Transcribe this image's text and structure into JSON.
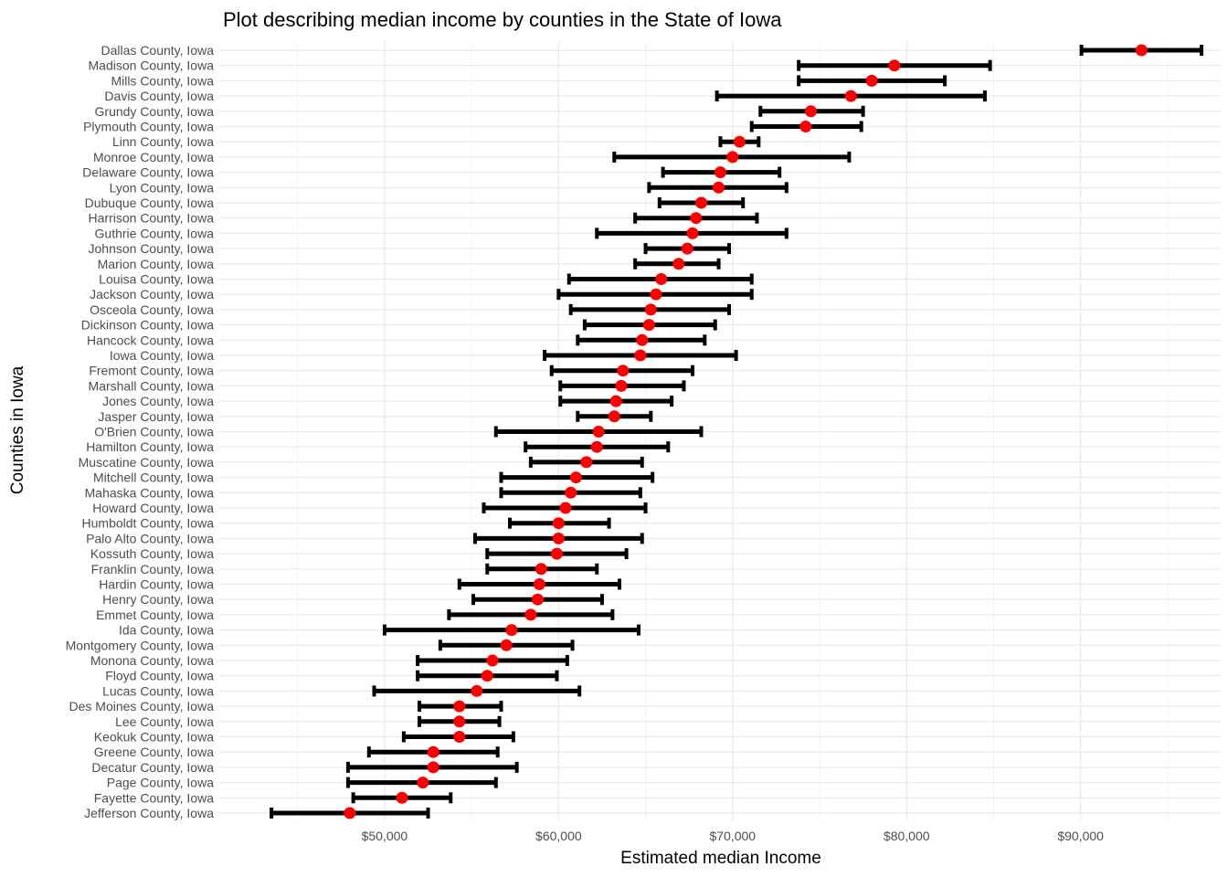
{
  "chart_data": {
    "type": "errorbar",
    "title": "Plot describing median income by counties in the State of Iowa",
    "xlabel": "Estimated median Income",
    "ylabel": "Counties in Iowa",
    "xlim": [
      40500,
      98000
    ],
    "x_ticks": [
      50000,
      60000,
      70000,
      80000,
      90000
    ],
    "x_tick_labels": [
      "$50,000",
      "$60,000",
      "$70,000",
      "$80,000",
      "$90,000"
    ],
    "grid": true,
    "colors": {
      "point": "#ff0000",
      "bar": "#000000"
    },
    "counties": [
      {
        "name": "Dallas County, Iowa",
        "estimate": 93500,
        "low": 90050,
        "high": 96950
      },
      {
        "name": "Madison County, Iowa",
        "estimate": 79300,
        "low": 73800,
        "high": 84800
      },
      {
        "name": "Mills County, Iowa",
        "estimate": 78000,
        "low": 73800,
        "high": 82200
      },
      {
        "name": "Davis County, Iowa",
        "estimate": 76800,
        "low": 69100,
        "high": 84500
      },
      {
        "name": "Grundy County, Iowa",
        "estimate": 74500,
        "low": 71600,
        "high": 77500
      },
      {
        "name": "Plymouth County, Iowa",
        "estimate": 74200,
        "low": 71100,
        "high": 77400
      },
      {
        "name": "Linn County, Iowa",
        "estimate": 70400,
        "low": 69300,
        "high": 71500
      },
      {
        "name": "Monroe County, Iowa",
        "estimate": 70000,
        "low": 63200,
        "high": 76700
      },
      {
        "name": "Delaware County, Iowa",
        "estimate": 69300,
        "low": 66000,
        "high": 72700
      },
      {
        "name": "Lyon County, Iowa",
        "estimate": 69200,
        "low": 65200,
        "high": 73100
      },
      {
        "name": "Dubuque County, Iowa",
        "estimate": 68200,
        "low": 65800,
        "high": 70600
      },
      {
        "name": "Harrison County, Iowa",
        "estimate": 67900,
        "low": 64400,
        "high": 71400
      },
      {
        "name": "Guthrie County, Iowa",
        "estimate": 67700,
        "low": 62200,
        "high": 73100
      },
      {
        "name": "Johnson County, Iowa",
        "estimate": 67400,
        "low": 65000,
        "high": 69800
      },
      {
        "name": "Marion County, Iowa",
        "estimate": 66900,
        "low": 64400,
        "high": 69200
      },
      {
        "name": "Louisa County, Iowa",
        "estimate": 65900,
        "low": 60600,
        "high": 71100
      },
      {
        "name": "Jackson County, Iowa",
        "estimate": 65600,
        "low": 60000,
        "high": 71100
      },
      {
        "name": "Osceola County, Iowa",
        "estimate": 65300,
        "low": 60700,
        "high": 69800
      },
      {
        "name": "Dickinson County, Iowa",
        "estimate": 65200,
        "low": 61500,
        "high": 69000
      },
      {
        "name": "Hancock County, Iowa",
        "estimate": 64800,
        "low": 61100,
        "high": 68400
      },
      {
        "name": "Iowa County, Iowa",
        "estimate": 64700,
        "low": 59200,
        "high": 70200
      },
      {
        "name": "Fremont County, Iowa",
        "estimate": 63700,
        "low": 59600,
        "high": 67700
      },
      {
        "name": "Marshall County, Iowa",
        "estimate": 63600,
        "low": 60100,
        "high": 67200
      },
      {
        "name": "Jones County, Iowa",
        "estimate": 63300,
        "low": 60100,
        "high": 66500
      },
      {
        "name": "Jasper County, Iowa",
        "estimate": 63200,
        "low": 61100,
        "high": 65300
      },
      {
        "name": "O'Brien County, Iowa",
        "estimate": 62300,
        "low": 56400,
        "high": 68200
      },
      {
        "name": "Hamilton County, Iowa",
        "estimate": 62200,
        "low": 58100,
        "high": 66300
      },
      {
        "name": "Muscatine County, Iowa",
        "estimate": 61600,
        "low": 58400,
        "high": 64800
      },
      {
        "name": "Mitchell County, Iowa",
        "estimate": 61000,
        "low": 56700,
        "high": 65400
      },
      {
        "name": "Mahaska County, Iowa",
        "estimate": 60700,
        "low": 56700,
        "high": 64700
      },
      {
        "name": "Howard County, Iowa",
        "estimate": 60400,
        "low": 55700,
        "high": 65000
      },
      {
        "name": "Humboldt County, Iowa",
        "estimate": 60000,
        "low": 57200,
        "high": 62900
      },
      {
        "name": "Palo Alto County, Iowa",
        "estimate": 60000,
        "low": 55200,
        "high": 64800
      },
      {
        "name": "Kossuth County, Iowa",
        "estimate": 59900,
        "low": 55900,
        "high": 63900
      },
      {
        "name": "Franklin County, Iowa",
        "estimate": 59000,
        "low": 55900,
        "high": 62200
      },
      {
        "name": "Hardin County, Iowa",
        "estimate": 58900,
        "low": 54300,
        "high": 63500
      },
      {
        "name": "Henry County, Iowa",
        "estimate": 58800,
        "low": 55100,
        "high": 62500
      },
      {
        "name": "Emmet County, Iowa",
        "estimate": 58400,
        "low": 53700,
        "high": 63100
      },
      {
        "name": "Ida County, Iowa",
        "estimate": 57300,
        "low": 50000,
        "high": 64600
      },
      {
        "name": "Montgomery County, Iowa",
        "estimate": 57000,
        "low": 53200,
        "high": 60800
      },
      {
        "name": "Monona County, Iowa",
        "estimate": 56200,
        "low": 51900,
        "high": 60500
      },
      {
        "name": "Floyd County, Iowa",
        "estimate": 55900,
        "low": 51900,
        "high": 59900
      },
      {
        "name": "Lucas County, Iowa",
        "estimate": 55300,
        "low": 49400,
        "high": 61200
      },
      {
        "name": "Des Moines County, Iowa",
        "estimate": 54300,
        "low": 52000,
        "high": 56700
      },
      {
        "name": "Lee County, Iowa",
        "estimate": 54300,
        "low": 52000,
        "high": 56600
      },
      {
        "name": "Keokuk County, Iowa",
        "estimate": 54300,
        "low": 51100,
        "high": 57400
      },
      {
        "name": "Greene County, Iowa",
        "estimate": 52800,
        "low": 49100,
        "high": 56500
      },
      {
        "name": "Decatur County, Iowa",
        "estimate": 52800,
        "low": 47900,
        "high": 57600
      },
      {
        "name": "Page County, Iowa",
        "estimate": 52200,
        "low": 47900,
        "high": 56400
      },
      {
        "name": "Fayette County, Iowa",
        "estimate": 51000,
        "low": 48200,
        "high": 53800
      },
      {
        "name": "Jefferson County, Iowa",
        "estimate": 48000,
        "low": 43500,
        "high": 52500
      }
    ]
  }
}
